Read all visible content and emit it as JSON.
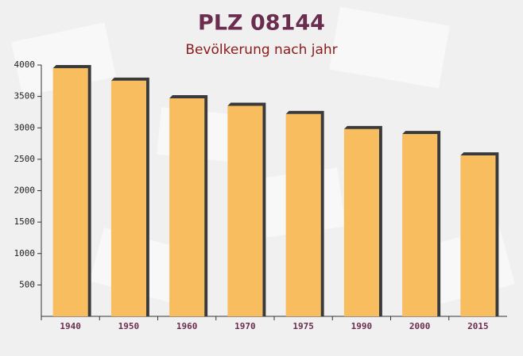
{
  "chart_data": {
    "type": "bar",
    "title": "PLZ 08144",
    "subtitle": "Bevölkerung nach jahr",
    "categories": [
      "1940",
      "1950",
      "1960",
      "1970",
      "1975",
      "1990",
      "2000",
      "2015"
    ],
    "values": [
      3950,
      3750,
      3470,
      3350,
      3220,
      2980,
      2900,
      2560
    ],
    "color": "#f7bd5e",
    "ylim": [
      0,
      4000
    ],
    "yticks": [
      500,
      1000,
      1500,
      2000,
      2500,
      3000,
      3500,
      4000
    ],
    "grid": false
  }
}
